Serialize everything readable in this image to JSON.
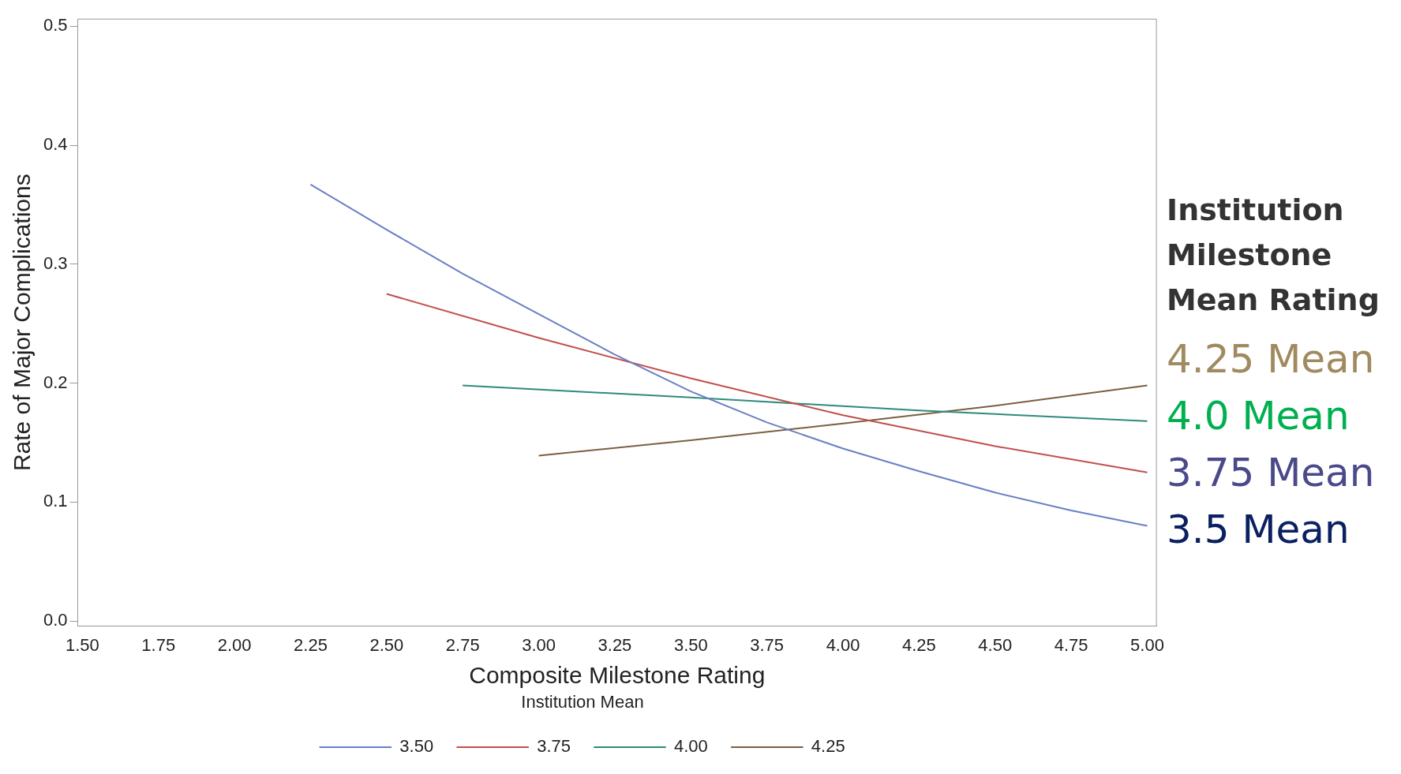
{
  "chart_data": {
    "type": "line",
    "xlabel": "Composite Milestone Rating",
    "ylabel": "Rate of Major Complications",
    "legend_title": "Institution Mean",
    "legend": "bottom",
    "grid": false,
    "marker": "none",
    "line_style": "solid",
    "xlim": [
      1.485,
      5.03
    ],
    "xticks": [
      {
        "value": 1.5,
        "label": "1.50"
      },
      {
        "value": 1.75,
        "label": "1.75"
      },
      {
        "value": 2,
        "label": "2.00"
      },
      {
        "value": 2.25,
        "label": "2.25"
      },
      {
        "value": 2.5,
        "label": "2.50"
      },
      {
        "value": 2.75,
        "label": "2.75"
      },
      {
        "value": 3,
        "label": "3.00"
      },
      {
        "value": 3.25,
        "label": "3.25"
      },
      {
        "value": 3.5,
        "label": "3.50"
      },
      {
        "value": 3.75,
        "label": "3.75"
      },
      {
        "value": 4,
        "label": "4.00"
      },
      {
        "value": 4.25,
        "label": "4.25"
      },
      {
        "value": 4.5,
        "label": "4.50"
      },
      {
        "value": 4.75,
        "label": "4.75"
      },
      {
        "value": 5,
        "label": "5.00"
      }
    ],
    "ylim": [
      -0.004,
      0.506
    ],
    "yticks": [
      {
        "value": 0,
        "label": "0.0"
      },
      {
        "value": 0.1,
        "label": "0.1"
      },
      {
        "value": 0.2,
        "label": "0.2"
      },
      {
        "value": 0.3,
        "label": "0.3"
      },
      {
        "value": 0.4,
        "label": "0.4"
      },
      {
        "value": 0.5,
        "label": "0.5"
      }
    ],
    "series": [
      {
        "name": "3.50",
        "color": "#6a7fc4",
        "x": [
          2.25,
          2.5,
          2.75,
          3,
          3.25,
          3.5,
          3.75,
          4,
          4.25,
          4.5,
          4.75,
          5
        ],
        "values": [
          0.367,
          0.329,
          0.292,
          0.258,
          0.224,
          0.193,
          0.167,
          0.145,
          0.126,
          0.108,
          0.093,
          0.08
        ]
      },
      {
        "name": "3.75",
        "color": "#c0504d",
        "x": [
          2.5,
          3,
          3.5,
          4,
          4.5,
          5
        ],
        "values": [
          0.275,
          0.238,
          0.204,
          0.173,
          0.147,
          0.125
        ]
      },
      {
        "name": "4.00",
        "color": "#2e8b7a",
        "x": [
          2.75,
          3.5,
          4.25,
          5
        ],
        "values": [
          0.198,
          0.188,
          0.177,
          0.168
        ]
      },
      {
        "name": "4.25",
        "color": "#7a6040",
        "x": [
          3,
          3.5,
          4,
          4.5,
          5
        ],
        "values": [
          0.139,
          0.152,
          0.166,
          0.181,
          0.198
        ]
      }
    ],
    "annotations": [
      "Institution Milestone Mean Rating",
      "4.25 Mean",
      "4.0 Mean",
      "3.75 Mean",
      "3.5 Mean"
    ]
  }
}
